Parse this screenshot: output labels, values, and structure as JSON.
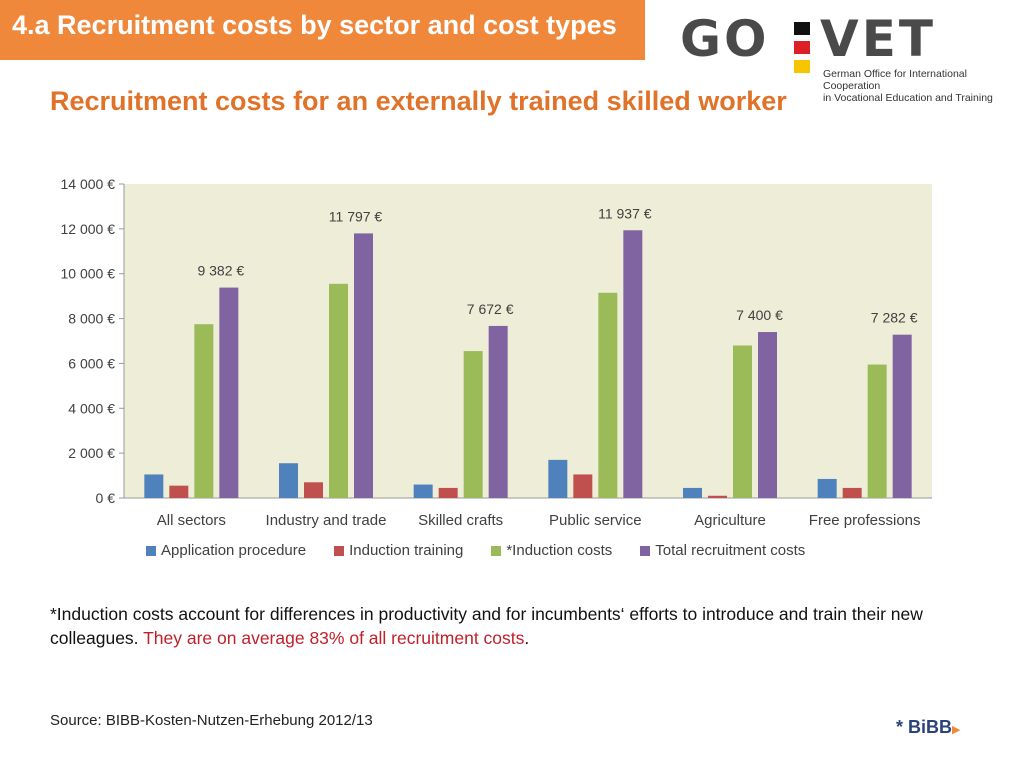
{
  "header": {
    "title": "4.a  Recruitment costs by sector and cost types"
  },
  "logo": {
    "word_left": "GO",
    "word_right": "VET",
    "tagline_line1": "German Office for International Cooperation",
    "tagline_line2": "in Vocational Education and Training",
    "flag_colors": [
      "#111111",
      "#dd1f26",
      "#f6c400"
    ]
  },
  "subtitle": "Recruitment costs for an externally trained skilled worker",
  "chart_data": {
    "type": "bar",
    "title": "",
    "xlabel": "",
    "ylabel": "",
    "ylim": [
      0,
      14000
    ],
    "yticks": [
      0,
      2000,
      4000,
      6000,
      8000,
      10000,
      12000,
      14000
    ],
    "ytick_labels": [
      "0 €",
      "2 000 €",
      "4 000 €",
      "6 000 €",
      "8 000 €",
      "10 000 €",
      "12 000 €",
      "14 000 €"
    ],
    "grid": false,
    "legend_position": "bottom",
    "plot_background": "#eeeed8",
    "categories": [
      "All sectors",
      "Industry and trade",
      "Skilled crafts",
      "Public service",
      "Agriculture",
      "Free professions"
    ],
    "series": [
      {
        "name": "Application procedure",
        "color": "#4f81bd",
        "values": [
          1050,
          1550,
          600,
          1700,
          450,
          850
        ]
      },
      {
        "name": "Induction training",
        "color": "#c0504d",
        "values": [
          550,
          700,
          450,
          1050,
          100,
          450
        ]
      },
      {
        "name": "*Induction costs",
        "color": "#9bbb59",
        "values": [
          7750,
          9550,
          6550,
          9150,
          6800,
          5950
        ]
      },
      {
        "name": "Total recruitment costs",
        "color": "#8064a2",
        "values": [
          9382,
          11797,
          7672,
          11937,
          7400,
          7282
        ]
      }
    ],
    "total_labels": [
      "9 382 €",
      "11 797 €",
      "7 672 €",
      "11 937 €",
      "7 400 €",
      "7 282 €"
    ]
  },
  "note": {
    "text": "*Induction costs account for differences in productivity and for incumbents‘ efforts to introduce and train their new colleagues. ",
    "highlight": "They are on average 83% of all recruitment costs",
    "end": "."
  },
  "source": "Source: BIBB-Kosten-Nutzen-Erhebung 2012/13",
  "bibb_logo": {
    "text": "* BiBB",
    "color": "#2a4478"
  }
}
